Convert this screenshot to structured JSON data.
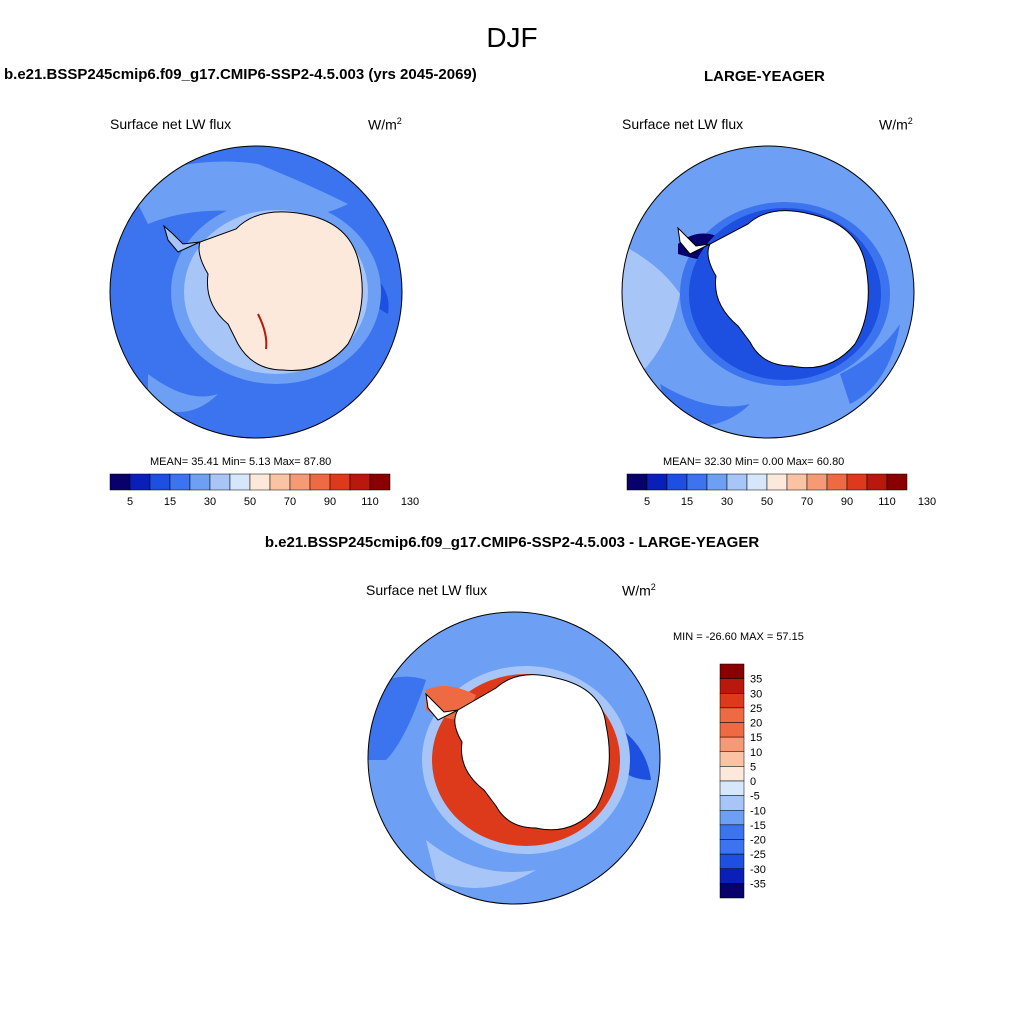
{
  "title": "DJF",
  "palettes": {
    "absolute": [
      "#08006b",
      "#0a1fb8",
      "#1d4fe0",
      "#3b74ee",
      "#6d9ff4",
      "#a7c6f7",
      "#d6e6fb",
      "#fde8dc",
      "#fbc2a3",
      "#f59a75",
      "#ed6a42",
      "#dc3a1b",
      "#b8190c",
      "#8a0000"
    ],
    "difference": [
      "#08006b",
      "#0a1fb8",
      "#1d4fe0",
      "#3b74ee",
      "#6d9ff4",
      "#a7c6f7",
      "#d6e6fb",
      "#fde8dc",
      "#fbc2a3",
      "#f59a75",
      "#ed6a42",
      "#dc3a1b",
      "#b8190c",
      "#8a0000"
    ]
  },
  "panels": [
    {
      "title": "b.e21.BSSP245cmip6.f09_g17.CMIP6-SSP2-4.5.003 (yrs 2045-2069)",
      "variable": "Surface net LW flux",
      "units": "W/m",
      "units_sup": "2",
      "stats": "MEAN=  35.41  Min=   5.13  Max=  87.80",
      "colorbar_labels": [
        "5",
        "15",
        "30",
        "50",
        "70",
        "90",
        "110",
        "130"
      ]
    },
    {
      "title": "LARGE-YEAGER",
      "variable": "Surface net LW flux",
      "units": "W/m",
      "units_sup": "2",
      "stats": "MEAN=  32.30  Min=   0.00  Max=  60.80",
      "colorbar_labels": [
        "5",
        "15",
        "30",
        "50",
        "70",
        "90",
        "110",
        "130"
      ]
    },
    {
      "title": "b.e21.BSSP245cmip6.f09_g17.CMIP6-SSP2-4.5.003 - LARGE-YEAGER",
      "variable": "Surface net LW flux",
      "units": "W/m",
      "units_sup": "2",
      "stats": "MIN = -26.60 MAX =  57.15",
      "colorbar_labels": [
        "35",
        "30",
        "25",
        "20",
        "15",
        "10",
        "5",
        "0",
        "-5",
        "-10",
        "-15",
        "-20",
        "-25",
        "-30",
        "-35"
      ]
    }
  ]
}
